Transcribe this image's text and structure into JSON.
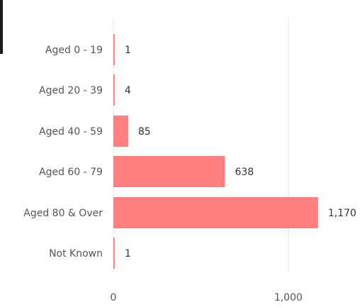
{
  "chart_data": {
    "type": "bar",
    "orientation": "horizontal",
    "title": "",
    "categories": [
      "Aged 0 - 19",
      "Aged 20 - 39",
      "Aged 40 - 59",
      "Aged 60 - 79",
      "Aged 80 & Over",
      "Not Known"
    ],
    "values": [
      1,
      4,
      85,
      638,
      1170,
      1
    ],
    "value_labels": [
      "1",
      "4",
      "85",
      "638",
      "1,170",
      "1"
    ],
    "x_ticks": [
      0,
      1000
    ],
    "x_tick_labels": [
      "0",
      "1,000"
    ],
    "xlim": [
      0,
      1000
    ],
    "grid": true,
    "bar_color": "#fd7f7f",
    "grid_color": "#e6e6e6"
  }
}
